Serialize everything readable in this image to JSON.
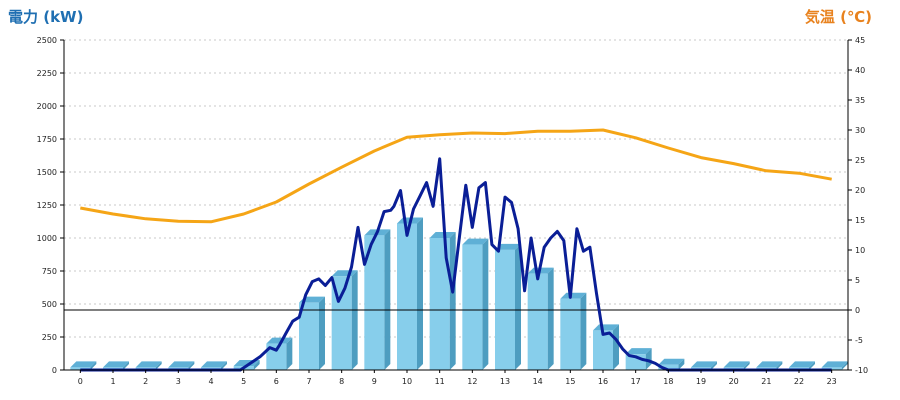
{
  "chart_data": {
    "type": "bar+line",
    "left_axis_title": "電力 (kW)",
    "right_axis_title": "気温 (℃)",
    "categories": [
      0,
      1,
      2,
      3,
      4,
      5,
      6,
      7,
      8,
      9,
      10,
      11,
      12,
      13,
      14,
      15,
      16,
      17,
      18,
      19,
      20,
      21,
      22,
      23
    ],
    "y_left": {
      "min": 0,
      "max": 2500,
      "ticks": [
        0,
        250,
        500,
        750,
        1000,
        1250,
        1500,
        1750,
        2000,
        2250,
        2500
      ]
    },
    "y_right": {
      "min": -10,
      "max": 45,
      "ticks": [
        -10,
        -5,
        0,
        5,
        10,
        15,
        20,
        25,
        30,
        35,
        40,
        45
      ]
    },
    "zero_line_right": 0,
    "grid": true,
    "bars": {
      "name": "",
      "color": "#87CEEB",
      "values": [
        20,
        20,
        20,
        20,
        20,
        30,
        200,
        510,
        710,
        1020,
        1110,
        1000,
        950,
        910,
        730,
        540,
        300,
        120,
        40,
        20,
        20,
        20,
        20,
        20
      ]
    },
    "power_line": {
      "color": "#0A1E96",
      "x": [
        0,
        1,
        2,
        3,
        4,
        4.9,
        5.2,
        5.5,
        5.8,
        6.0,
        6.1,
        6.3,
        6.5,
        6.7,
        6.9,
        7.1,
        7.3,
        7.5,
        7.7,
        7.9,
        8.1,
        8.3,
        8.5,
        8.7,
        8.9,
        9.1,
        9.3,
        9.5,
        9.6,
        9.8,
        10.0,
        10.2,
        10.4,
        10.6,
        10.8,
        11.0,
        11.2,
        11.4,
        11.6,
        11.8,
        12.0,
        12.2,
        12.4,
        12.6,
        12.8,
        13.0,
        13.2,
        13.4,
        13.6,
        13.8,
        14.0,
        14.2,
        14.4,
        14.6,
        14.8,
        15.0,
        15.2,
        15.4,
        15.6,
        15.8,
        16.0,
        16.2,
        16.4,
        16.6,
        16.8,
        17.0,
        17.2,
        17.4,
        17.6,
        17.8,
        18,
        19,
        20,
        21,
        22,
        23
      ],
      "y": [
        0,
        0,
        0,
        0,
        0,
        0,
        50,
        100,
        170,
        150,
        190,
        280,
        370,
        400,
        570,
        670,
        690,
        640,
        700,
        520,
        620,
        780,
        1080,
        800,
        950,
        1050,
        1200,
        1210,
        1240,
        1360,
        1020,
        1220,
        1320,
        1420,
        1240,
        1600,
        850,
        590,
        1000,
        1400,
        1080,
        1380,
        1420,
        950,
        900,
        1310,
        1270,
        1070,
        600,
        1000,
        690,
        930,
        1000,
        1050,
        980,
        550,
        1070,
        900,
        930,
        580,
        270,
        280,
        230,
        160,
        110,
        100,
        80,
        70,
        50,
        20,
        0,
        0,
        0,
        0,
        0,
        0
      ]
    },
    "temperature_line": {
      "color": "#F5A516",
      "x": [
        0,
        1,
        2,
        3,
        4,
        5,
        6,
        7,
        8,
        9,
        10,
        11,
        12,
        13,
        14,
        15,
        16,
        17,
        18,
        19,
        20,
        21,
        22,
        23
      ],
      "y": [
        17,
        16,
        15.2,
        14.8,
        14.7,
        16,
        18,
        21,
        23.8,
        26.5,
        28.8,
        29.2,
        29.5,
        29.4,
        29.8,
        29.8,
        30,
        28.7,
        27,
        25.4,
        24.4,
        23.2,
        22.8,
        21.8
      ]
    }
  }
}
